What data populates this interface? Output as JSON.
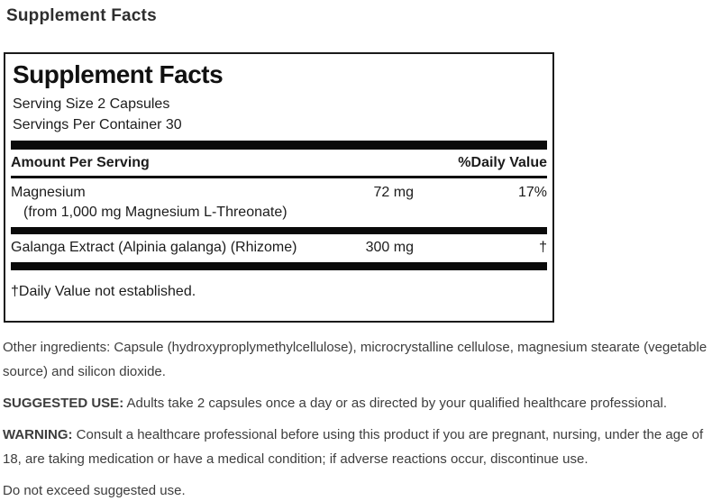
{
  "page": {
    "heading": "Supplement Facts"
  },
  "panel": {
    "title": "Supplement Facts",
    "serving_size": "Serving Size 2 Capsules",
    "servings_per_container": "Servings Per Container 30",
    "columns": {
      "amount_header": "Amount Per Serving",
      "daily_value_header": "%Daily Value"
    },
    "rows": [
      {
        "name": "Magnesium",
        "note": "(from 1,000 mg Magnesium L-Threonate)",
        "amount": "72 mg",
        "daily_value": "17%"
      },
      {
        "name": "Galanga Extract (Alpinia galanga) (Rhizome)",
        "amount": "300 mg",
        "daily_value": "†"
      }
    ],
    "footnote": "†Daily Value not established."
  },
  "details": {
    "other_ingredients_label": "Other ingredients:",
    "other_ingredients_text": "Capsule (hydroxyproplymethylcellulose), microcrystalline cellulose, magnesium stearate (vegetable source) and silicon dioxide.",
    "suggested_use_label": "SUGGESTED USE:",
    "suggested_use_text": "Adults take 2 capsules once a day or as directed by your qualified healthcare professional.",
    "warning_label": "WARNING:",
    "warning_text": "Consult a healthcare professional before using this product if you are pregnant, nursing, under the age of 18, are taking medication or have a medical condition; if adverse reactions occur, discontinue use.",
    "note": "Do not exceed suggested use."
  },
  "colors": {
    "panel_border": "#1a1a1a",
    "separator_bar": "#0a0a0a",
    "panel_text": "#1c1c1c",
    "body_text": "#3d3d3d"
  }
}
